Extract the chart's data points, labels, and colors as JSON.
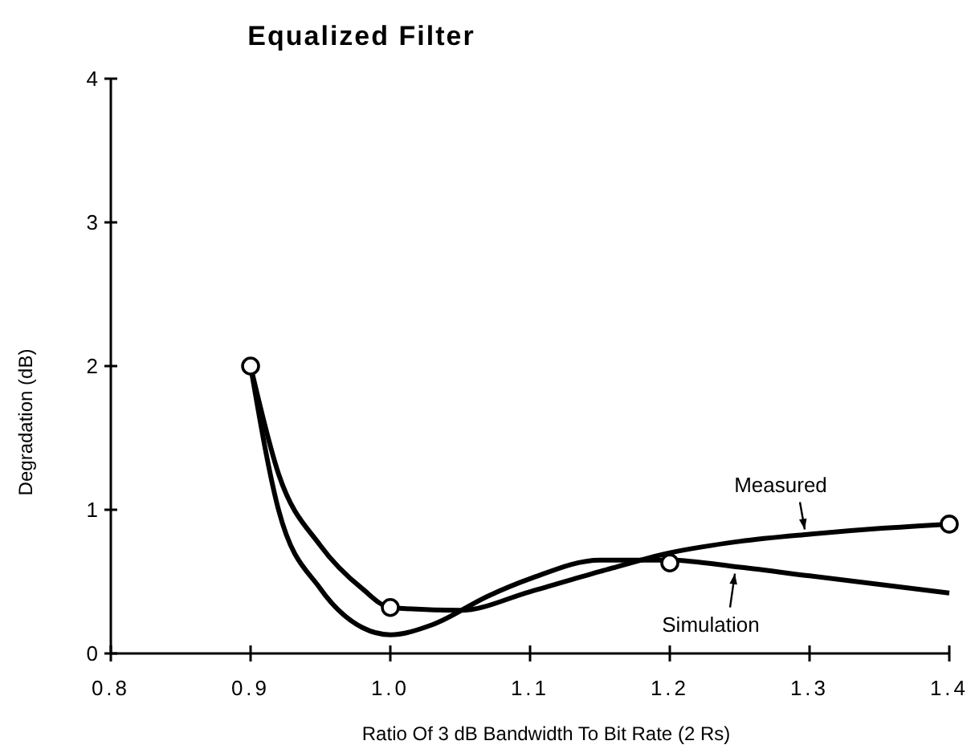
{
  "chart_data": {
    "type": "line",
    "title": "Equalized Filter",
    "xlabel": "Ratio Of 3 dB Bandwidth To Bit Rate (2 Rs)",
    "ylabel": "Degradation (dB)",
    "xlim": [
      0.8,
      1.4
    ],
    "xticks": [
      {
        "value": 0.8,
        "label": "0.8"
      },
      {
        "value": 0.9,
        "label": "0.9"
      },
      {
        "value": 1.0,
        "label": "1.0"
      },
      {
        "value": 1.1,
        "label": "1.1"
      },
      {
        "value": 1.2,
        "label": "1.2"
      },
      {
        "value": 1.3,
        "label": "1.3"
      },
      {
        "value": 1.4,
        "label": "1.4"
      }
    ],
    "ylim": [
      0,
      4
    ],
    "yticks": [
      0,
      1,
      2,
      3,
      4
    ],
    "grid": false,
    "series": [
      {
        "name": "Measured",
        "color": "#000000",
        "marker": "none",
        "x": [
          0.9,
          0.92,
          0.95,
          0.98,
          1.0,
          1.05,
          1.1,
          1.15,
          1.2,
          1.25,
          1.3,
          1.35,
          1.4
        ],
        "values": [
          2.0,
          1.25,
          0.75,
          0.45,
          0.32,
          0.3,
          0.43,
          0.57,
          0.7,
          0.78,
          0.83,
          0.87,
          0.9
        ]
      },
      {
        "name": "Simulation",
        "color": "#000000",
        "marker": "none",
        "x": [
          0.9,
          0.92,
          0.95,
          0.98,
          1.0,
          1.03,
          1.07,
          1.1,
          1.15,
          1.2,
          1.25,
          1.3,
          1.35,
          1.4
        ],
        "values": [
          2.0,
          1.0,
          0.45,
          0.18,
          0.13,
          0.2,
          0.4,
          0.52,
          0.65,
          0.65,
          0.6,
          0.54,
          0.48,
          0.42
        ]
      },
      {
        "type": "scatter",
        "color": "#000000",
        "marker": "circle",
        "x": [
          0.9,
          1.0,
          1.2,
          1.4
        ],
        "values": [
          2.0,
          0.32,
          0.63,
          0.9
        ]
      }
    ]
  }
}
